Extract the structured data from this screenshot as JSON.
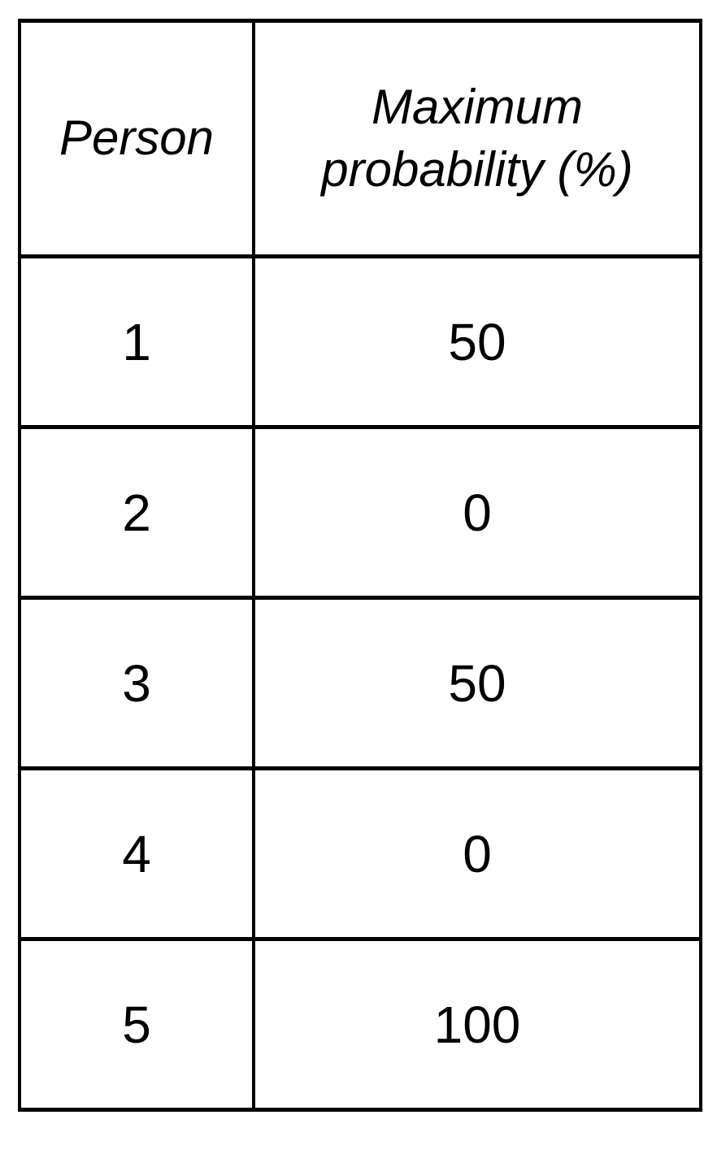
{
  "table": {
    "columns": [
      {
        "label": "Person"
      },
      {
        "label": "Maximum probability (%)"
      }
    ],
    "rows": [
      {
        "person": "1",
        "max_probability": "50"
      },
      {
        "person": "2",
        "max_probability": "0"
      },
      {
        "person": "3",
        "max_probability": "50"
      },
      {
        "person": "4",
        "max_probability": "0"
      },
      {
        "person": "5",
        "max_probability": "100"
      }
    ]
  },
  "chart_data": {
    "type": "table",
    "columns": [
      "Person",
      "Maximum probability (%)"
    ],
    "rows": [
      [
        1,
        50
      ],
      [
        2,
        0
      ],
      [
        3,
        50
      ],
      [
        4,
        0
      ],
      [
        5,
        100
      ]
    ],
    "notes": "Static data table; headers italic; values are percentages"
  },
  "colors": {
    "border": "#000000",
    "text": "#000000",
    "background": "#ffffff"
  }
}
